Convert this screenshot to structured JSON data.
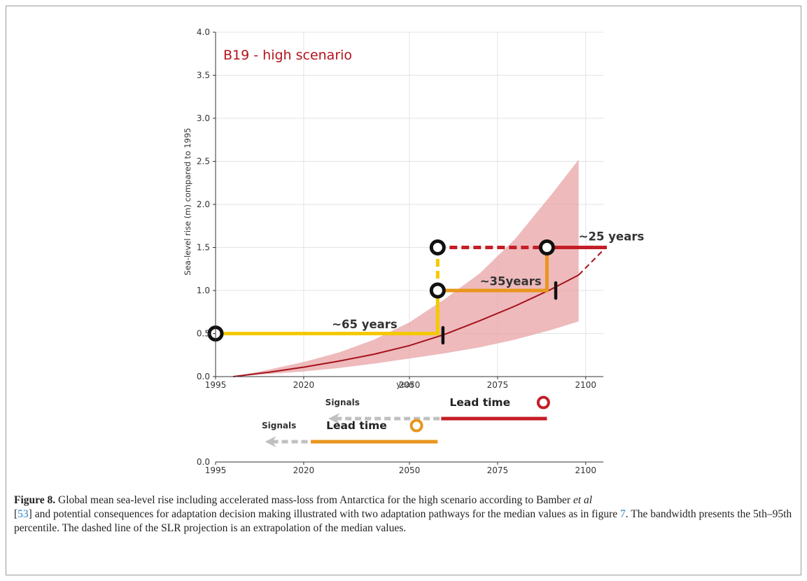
{
  "chart_data": {
    "type": "line",
    "scenario_label": "B19 - high scenario",
    "ylabel": "Sea-level rise (m) compared to 1995",
    "xlabel": "year",
    "xlim": [
      1995,
      2105
    ],
    "ylim": [
      0.0,
      4.0
    ],
    "x_ticks": [
      1995,
      2020,
      2050,
      2075,
      2100
    ],
    "x_tick_labels": [
      "1995",
      "2020",
      "2050",
      "2075",
      "2100"
    ],
    "y_ticks": [
      0.0,
      0.5,
      1.0,
      1.5,
      2.0,
      2.5,
      3.0,
      3.5,
      4.0
    ],
    "y_tick_labels": [
      "0.0",
      "0.5",
      "1.0",
      "1.5",
      "2.0",
      "2.5",
      "3.0",
      "3.5",
      "4.0"
    ],
    "grid": true,
    "colors": {
      "median": "#a5121b",
      "band": "#e8a3a6",
      "pathway_yellow": "#f5c800",
      "pathway_orange": "#e8961e",
      "pathway_red": "#c41e26",
      "signal_grey": "#c0c0c0",
      "circle": "#111111"
    },
    "median": {
      "x": [
        2000,
        2010,
        2020,
        2030,
        2040,
        2050,
        2060,
        2070,
        2080,
        2090,
        2098
      ],
      "y": [
        0.0,
        0.05,
        0.11,
        0.18,
        0.26,
        0.36,
        0.49,
        0.65,
        0.82,
        1.01,
        1.18
      ]
    },
    "median_extrapolation": {
      "x": [
        2098,
        2105
      ],
      "y": [
        1.18,
        1.47
      ]
    },
    "band": {
      "x": [
        2000,
        2010,
        2020,
        2030,
        2040,
        2050,
        2060,
        2070,
        2080,
        2090,
        2098
      ],
      "lower": [
        0.0,
        0.03,
        0.06,
        0.1,
        0.15,
        0.21,
        0.27,
        0.34,
        0.43,
        0.54,
        0.64
      ],
      "upper": [
        0.0,
        0.08,
        0.17,
        0.28,
        0.43,
        0.63,
        0.9,
        1.2,
        1.6,
        2.1,
        2.52
      ]
    },
    "pathways": [
      {
        "color_key": "pathway_yellow",
        "style": "solid",
        "x": [
          1995,
          2058,
          2058
        ],
        "y": [
          0.5,
          0.5,
          1.0
        ]
      },
      {
        "color_key": "pathway_yellow",
        "style": "dashed",
        "x": [
          2058,
          2058
        ],
        "y": [
          1.0,
          1.5
        ]
      },
      {
        "color_key": "pathway_orange",
        "style": "solid",
        "x": [
          2058,
          2089,
          2089
        ],
        "y": [
          1.0,
          1.0,
          1.5
        ]
      },
      {
        "color_key": "pathway_red",
        "style": "dashed",
        "x": [
          2058,
          2089
        ],
        "y": [
          1.5,
          1.5
        ]
      },
      {
        "color_key": "pathway_red",
        "style": "solid",
        "x": [
          2089,
          2106
        ],
        "y": [
          1.5,
          1.5
        ]
      }
    ],
    "decision_points": [
      {
        "x": 1995,
        "y": 0.5
      },
      {
        "x": 2058,
        "y": 1.0
      },
      {
        "x": 2058,
        "y": 1.5
      },
      {
        "x": 2089,
        "y": 1.5
      }
    ],
    "tipping_marks": [
      {
        "x": 2059.5,
        "y": 0.48
      },
      {
        "x": 2091.5,
        "y": 1.0
      }
    ],
    "annotations": [
      {
        "text": "~65 years",
        "x": 2028,
        "y": 0.56
      },
      {
        "text": "~35years",
        "x": 2070,
        "y": 1.06
      },
      {
        "text": "~25 years",
        "x": 2098,
        "y": 1.58
      }
    ],
    "lead_time_panel": {
      "x_ticks": [
        1995,
        2020,
        2050,
        2075,
        2100
      ],
      "x_tick_labels": [
        "1995",
        "2020",
        "2050",
        "2075",
        "2100"
      ],
      "y_label": "0.0",
      "signals_label": "Signals",
      "lead_time_label": "Lead time",
      "rows": [
        {
          "color_key": "pathway_red",
          "signal_from": 2027,
          "signal_to": 2059,
          "lead_from": 2059,
          "lead_to": 2089,
          "signals_label_at": 2031,
          "lead_label_at": 2070,
          "circle_at": 2088
        },
        {
          "color_key": "pathway_orange",
          "signal_from": 2009,
          "signal_to": 2022,
          "lead_from": 2022,
          "lead_to": 2058,
          "signals_label_at": 2013,
          "lead_label_at": 2035,
          "circle_at": 2052
        }
      ]
    }
  },
  "caption": {
    "label": "Figure 8.",
    "part1": " Global mean sea-level rise including accelerated mass-loss from Antarctica for the high scenario according to Bamber ",
    "etal": "et al",
    "ref_open": "[",
    "ref": "53",
    "part2": "] and potential consequences for adaptation decision making illustrated with two adaptation pathways for the median values as in figure ",
    "fig_ref": "7",
    "part3": ". The bandwidth presents the 5th–95th percentile. The dashed line of the SLR projection is an extrapolation of the median values."
  }
}
